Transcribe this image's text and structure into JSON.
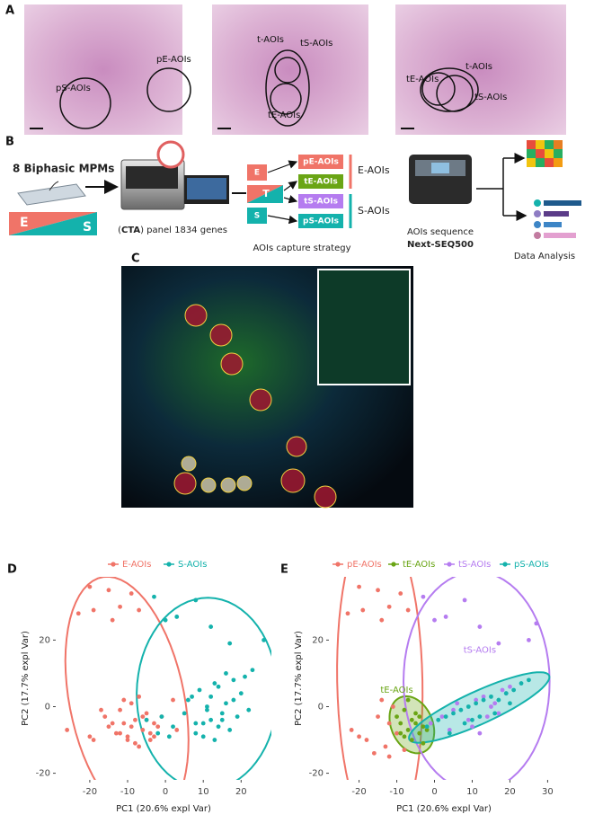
{
  "panels": {
    "a": {
      "letter": "A",
      "images": [
        {
          "labels": [
            "pS-AOIs",
            "pE-AOIs"
          ]
        },
        {
          "labels": [
            "t-AOIs",
            "tS-AOIs",
            "tE-AOIs"
          ]
        },
        {
          "labels": [
            "tE-AOIs",
            "t-AOIs",
            "tS-AOIs"
          ]
        }
      ]
    },
    "b": {
      "letter": "B",
      "cohort": "8 Biphasic MPMs",
      "gradient": [
        "E",
        "S"
      ],
      "panel_text": [
        "(",
        "CTA",
        ") panel 1834 genes"
      ],
      "strategy_boxes": [
        "E",
        "T",
        "S"
      ],
      "aois": [
        "pE-AOIs",
        "tE-AOIs",
        "tS-AOIs",
        "pS-AOIs"
      ],
      "groups": [
        "E-AOIs",
        "S-AOIs"
      ],
      "strategy": "AOIs capture strategy",
      "sequence": "AOIs sequence",
      "sequencer": "Next-SEQ500",
      "analysis": "Data Analysis"
    },
    "c": {
      "letter": "C"
    }
  },
  "chart_data": [
    {
      "type": "scatter",
      "panel": "D",
      "x_label": "PC1 (20.6% expl Var)",
      "y_label": "PC2 (17.7% expl Var)",
      "xlim": [
        -29,
        28
      ],
      "ylim": [
        -22,
        39
      ],
      "xticks": [
        -20,
        -10,
        0,
        10,
        20
      ],
      "yticks": [
        -20,
        0,
        20
      ],
      "ellipses": true,
      "series": [
        {
          "name": "E-AOIs",
          "color": "#f07468",
          "fill_ellipse": false,
          "x": [
            -20,
            -15,
            -9,
            -19,
            -12,
            -23,
            -7,
            -14,
            -26,
            -20,
            -19,
            -16,
            -14,
            -12,
            -11,
            -10,
            -9,
            -8,
            -7,
            -6,
            -5,
            -4,
            -3,
            -2,
            -12,
            -10,
            -8,
            -6,
            -4,
            -15,
            -13,
            -9,
            -7,
            -5,
            -1,
            2,
            3,
            -17,
            -11,
            -3
          ],
          "values": [
            36,
            35,
            34,
            29,
            30,
            28,
            29,
            26,
            -7,
            -9,
            -10,
            -3,
            -5,
            -8,
            2,
            -10,
            -6,
            -4,
            -12,
            -3,
            -2,
            -8,
            -5,
            -6,
            -1,
            -9,
            -11,
            -7,
            -10,
            -6,
            -8,
            1,
            3,
            -4,
            -3,
            2,
            -7,
            -1,
            -5,
            -9
          ]
        },
        {
          "name": "S-AOIs",
          "color": "#14b2ac",
          "fill_ellipse": false,
          "x": [
            -3,
            8,
            3,
            0,
            12,
            26,
            17,
            -1,
            2,
            5,
            6,
            8,
            9,
            10,
            11,
            12,
            13,
            14,
            15,
            16,
            17,
            18,
            19,
            20,
            21,
            22,
            10,
            12,
            14,
            16,
            18,
            8,
            11,
            13,
            15,
            -5,
            -2,
            1,
            23,
            7
          ],
          "values": [
            33,
            32,
            27,
            26,
            24,
            20,
            19,
            -3,
            -6,
            -2,
            2,
            -8,
            5,
            -5,
            0,
            3,
            -10,
            6,
            -4,
            1,
            -7,
            8,
            -3,
            4,
            9,
            -1,
            -9,
            -4,
            -6,
            10,
            2,
            -5,
            -1,
            7,
            -2,
            -4,
            -8,
            -9,
            11,
            3
          ]
        }
      ]
    },
    {
      "type": "scatter",
      "panel": "E",
      "x_label": "PC1 (20.6% expl Var)",
      "y_label": "PC2 (17.7% expl Var)",
      "xlim": [
        -28,
        33
      ],
      "ylim": [
        -22,
        39
      ],
      "xticks": [
        -20,
        -10,
        0,
        10,
        20,
        30
      ],
      "yticks": [
        -20,
        0,
        20
      ],
      "ellipses": true,
      "annotations": [
        {
          "text": "tE-AOIs",
          "x": -10,
          "y": 5,
          "color": "#6aa515"
        },
        {
          "text": "tS-AOIs",
          "x": 12,
          "y": 17,
          "color": "#b57cf0"
        }
      ],
      "series": [
        {
          "name": "pE-AOIs",
          "color": "#f07468",
          "fill_ellipse": false,
          "x": [
            -20,
            -15,
            -9,
            -19,
            -12,
            -23,
            -7,
            -14,
            -22,
            -20,
            -18,
            -15,
            -12,
            -10,
            -14,
            -16,
            -13,
            -11,
            -12,
            -8
          ],
          "values": [
            36,
            35,
            34,
            29,
            30,
            28,
            29,
            26,
            -7,
            -9,
            -10,
            -3,
            -5,
            -8,
            2,
            -14,
            -12,
            0,
            -15,
            -13
          ]
        },
        {
          "name": "tE-AOIs",
          "color": "#6aa515",
          "fill_ellipse": true,
          "x": [
            -10,
            -9,
            -8,
            -7,
            -6,
            -5,
            -4,
            -3,
            -8,
            -6,
            -5,
            -4,
            -2,
            -7,
            -9,
            -3
          ],
          "values": [
            -3,
            -5,
            -1,
            -7,
            -4,
            -2,
            -8,
            -6,
            -9,
            -10,
            -5,
            -3,
            -7,
            2,
            -8,
            -11
          ]
        },
        {
          "name": "tS-AOIs",
          "color": "#b57cf0",
          "fill_ellipse": false,
          "x": [
            -3,
            8,
            3,
            0,
            12,
            17,
            25,
            27,
            2,
            5,
            6,
            9,
            11,
            13,
            15,
            17,
            19,
            10,
            14,
            18,
            16,
            12,
            -1,
            4,
            20
          ],
          "values": [
            33,
            32,
            27,
            26,
            24,
            19,
            20,
            25,
            -3,
            -1,
            1,
            -4,
            2,
            3,
            0,
            -2,
            4,
            -6,
            -3,
            5,
            1,
            -8,
            -5,
            -7,
            6
          ]
        },
        {
          "name": "pS-AOIs",
          "color": "#14b2ac",
          "fill_ellipse": true,
          "x": [
            -2,
            1,
            3,
            5,
            7,
            9,
            11,
            13,
            15,
            17,
            19,
            21,
            23,
            25,
            8,
            12,
            16,
            20,
            4,
            10
          ],
          "values": [
            -6,
            -4,
            -3,
            -2,
            -1,
            0,
            1,
            2,
            3,
            2,
            4,
            5,
            7,
            8,
            -5,
            -3,
            -2,
            1,
            -8,
            -4
          ]
        }
      ]
    }
  ]
}
